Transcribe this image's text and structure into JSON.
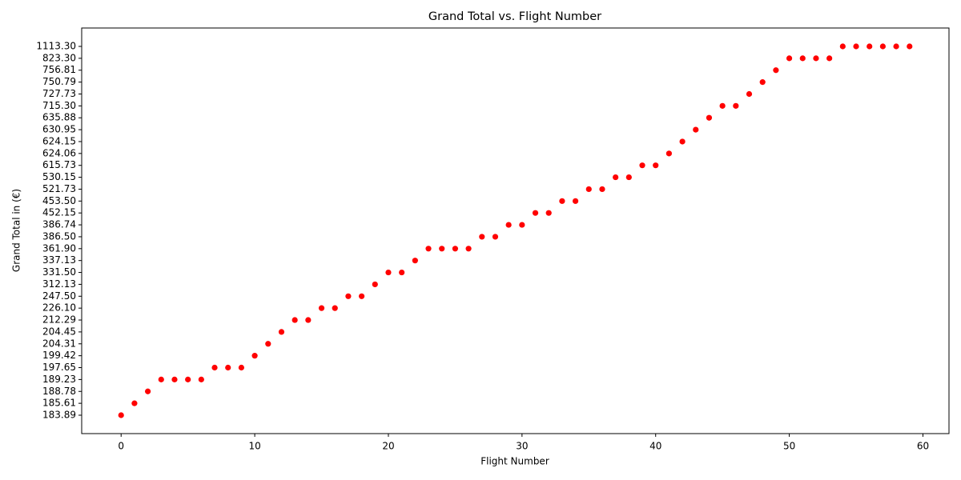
{
  "chart_data": {
    "type": "scatter",
    "title": "Grand Total vs. Flight Number",
    "x_label": "Flight Number",
    "y_label": "Grand Total in (€)",
    "yscale": "category",
    "color": "#ff0000",
    "xlim": [
      -2.95,
      61.95
    ],
    "xticks": [
      0,
      10,
      20,
      30,
      40,
      50,
      60
    ],
    "yticks": [
      {
        "value": 183.89,
        "label": "183.89"
      },
      {
        "value": 185.61,
        "label": "185.61"
      },
      {
        "value": 188.78,
        "label": "188.78"
      },
      {
        "value": 189.23,
        "label": "189.23"
      },
      {
        "value": 197.65,
        "label": "197.65"
      },
      {
        "value": 199.42,
        "label": "199.42"
      },
      {
        "value": 204.31,
        "label": "204.31"
      },
      {
        "value": 204.45,
        "label": "204.45"
      },
      {
        "value": 212.29,
        "label": "212.29"
      },
      {
        "value": 226.1,
        "label": "226.10"
      },
      {
        "value": 247.5,
        "label": "247.50"
      },
      {
        "value": 312.13,
        "label": "312.13"
      },
      {
        "value": 331.5,
        "label": "331.50"
      },
      {
        "value": 337.13,
        "label": "337.13"
      },
      {
        "value": 361.9,
        "label": "361.90"
      },
      {
        "value": 386.5,
        "label": "386.50"
      },
      {
        "value": 386.74,
        "label": "386.74"
      },
      {
        "value": 452.15,
        "label": "452.15"
      },
      {
        "value": 453.5,
        "label": "453.50"
      },
      {
        "value": 521.73,
        "label": "521.73"
      },
      {
        "value": 530.15,
        "label": "530.15"
      },
      {
        "value": 615.73,
        "label": "615.73"
      },
      {
        "value": 624.06,
        "label": "624.06"
      },
      {
        "value": 624.15,
        "label": "624.15"
      },
      {
        "value": 630.95,
        "label": "630.95"
      },
      {
        "value": 635.88,
        "label": "635.88"
      },
      {
        "value": 715.3,
        "label": "715.30"
      },
      {
        "value": 727.73,
        "label": "727.73"
      },
      {
        "value": 750.79,
        "label": "750.79"
      },
      {
        "value": 756.81,
        "label": "756.81"
      },
      {
        "value": 823.3,
        "label": "823.30"
      },
      {
        "value": 1113.3,
        "label": "1113.30"
      }
    ],
    "x": [
      0,
      1,
      2,
      3,
      4,
      5,
      6,
      7,
      8,
      9,
      10,
      11,
      12,
      13,
      14,
      15,
      16,
      17,
      18,
      19,
      20,
      21,
      22,
      23,
      24,
      25,
      26,
      27,
      28,
      29,
      30,
      31,
      32,
      33,
      34,
      35,
      36,
      37,
      38,
      39,
      40,
      41,
      42,
      43,
      44,
      45,
      46,
      47,
      48,
      49,
      50,
      51,
      52,
      53,
      54,
      55,
      56,
      57,
      58,
      59
    ],
    "values": [
      183.89,
      185.61,
      188.78,
      189.23,
      189.23,
      189.23,
      189.23,
      197.65,
      197.65,
      197.65,
      199.42,
      204.31,
      204.45,
      212.29,
      212.29,
      226.1,
      226.1,
      247.5,
      247.5,
      312.13,
      331.5,
      331.5,
      337.13,
      361.9,
      361.9,
      361.9,
      361.9,
      386.5,
      386.5,
      386.74,
      386.74,
      452.15,
      452.15,
      453.5,
      453.5,
      521.73,
      521.73,
      530.15,
      530.15,
      615.73,
      615.73,
      624.06,
      624.15,
      630.95,
      635.88,
      715.3,
      715.3,
      727.73,
      750.79,
      756.81,
      823.3,
      823.3,
      823.3,
      823.3,
      1113.3,
      1113.3,
      1113.3,
      1113.3,
      1113.3,
      1113.3
    ]
  }
}
